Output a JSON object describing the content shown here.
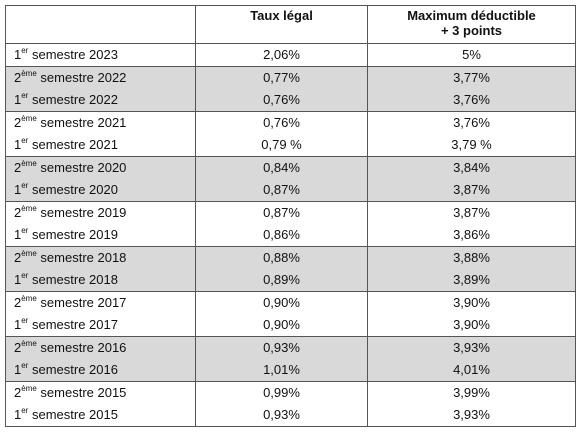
{
  "headers": {
    "col1": "",
    "col2": "Taux légal",
    "col3_line1": "Maximum déductible",
    "col3_line2": "+ 3 points"
  },
  "rows": [
    {
      "ordinal": "1",
      "suffix": "er",
      "label": "semestre 2023",
      "taux": "2,06%",
      "max": "5%"
    },
    {
      "ordinal": "2",
      "suffix": "ème",
      "label": "semestre 2022",
      "taux": "0,77%",
      "max": "3,77%"
    },
    {
      "ordinal": "1",
      "suffix": "er",
      "label": "semestre 2022",
      "taux": "0,76%",
      "max": "3,76%"
    },
    {
      "ordinal": "2",
      "suffix": "ème",
      "label": "semestre 2021",
      "taux": "0,76%",
      "max": "3,76%"
    },
    {
      "ordinal": "1",
      "suffix": "er",
      "label": "semestre 2021",
      "taux": "0,79 %",
      "max": "3,79 %"
    },
    {
      "ordinal": "2",
      "suffix": "ème",
      "label": "semestre 2020",
      "taux": "0,84%",
      "max": "3,84%"
    },
    {
      "ordinal": "1",
      "suffix": "er",
      "label": "semestre 2020",
      "taux": "0,87%",
      "max": "3,87%"
    },
    {
      "ordinal": "2",
      "suffix": "ème",
      "label": "semestre 2019",
      "taux": "0,87%",
      "max": "3,87%"
    },
    {
      "ordinal": "1",
      "suffix": "er",
      "label": "semestre 2019",
      "taux": "0,86%",
      "max": "3,86%"
    },
    {
      "ordinal": "2",
      "suffix": "ème",
      "label": "semestre 2018",
      "taux": "0,88%",
      "max": "3,88%"
    },
    {
      "ordinal": "1",
      "suffix": "er",
      "label": "semestre 2018",
      "taux": "0,89%",
      "max": "3,89%"
    },
    {
      "ordinal": "2",
      "suffix": "ème",
      "label": "semestre 2017",
      "taux": "0,90%",
      "max": "3,90%"
    },
    {
      "ordinal": "1",
      "suffix": "er",
      "label": "semestre 2017",
      "taux": "0,90%",
      "max": "3,90%"
    },
    {
      "ordinal": "2",
      "suffix": "ème",
      "label": "semestre 2016",
      "taux": "0,93%",
      "max": "3,93%"
    },
    {
      "ordinal": "1",
      "suffix": "er",
      "label": "semestre 2016",
      "taux": "1,01%",
      "max": "4,01%"
    },
    {
      "ordinal": "2",
      "suffix": "ème",
      "label": "semestre 2015",
      "taux": "0,99%",
      "max": "3,99%"
    },
    {
      "ordinal": "1",
      "suffix": "er",
      "label": "semestre 2015",
      "taux": "0,93%",
      "max": "3,93%"
    }
  ],
  "colors": {
    "shaded_row": "#d9d9d9",
    "border": "#555555"
  }
}
